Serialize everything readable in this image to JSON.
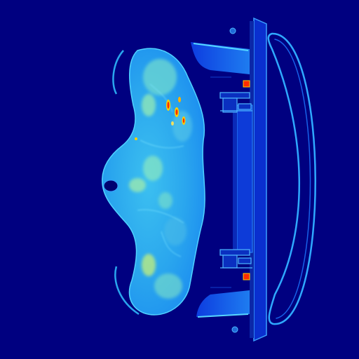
{
  "image": {
    "kind": "false-color CT axial slice",
    "colormap": "jet",
    "background_color": "#000080",
    "body_color": "#2aa6ee",
    "bright_tissue_color": "#7fe3c6",
    "hot_spot_color": "#ff2b00",
    "couch_color": "#1e7cf0",
    "outline_color": "#39b6ff"
  }
}
